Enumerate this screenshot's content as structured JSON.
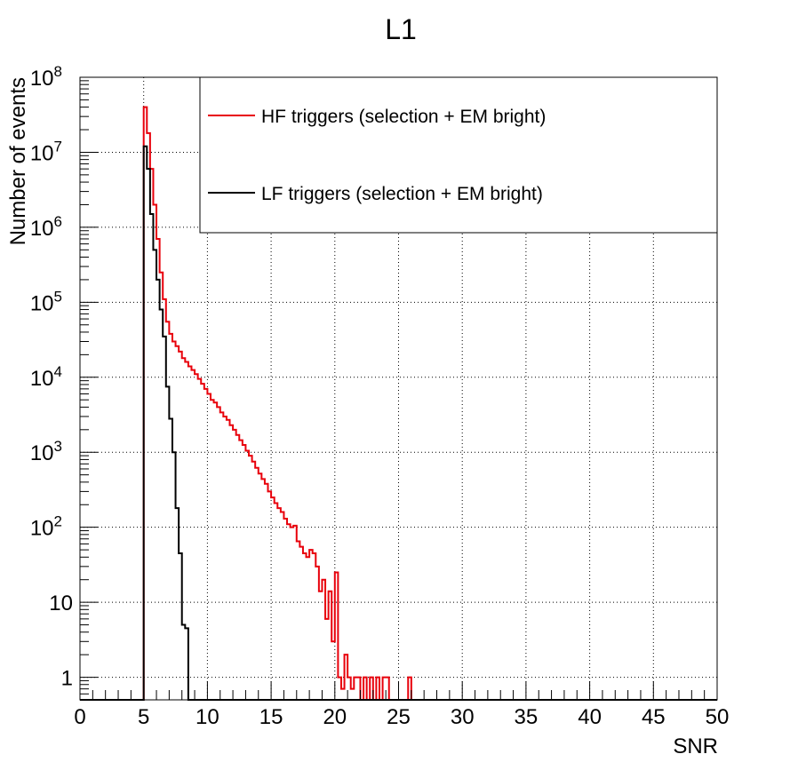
{
  "chart_data": {
    "type": "line",
    "title": "L1",
    "xlabel": "SNR",
    "ylabel": "Number of events",
    "xlim": [
      0,
      50
    ],
    "ylim": [
      0.5,
      100000000
    ],
    "yscale": "log",
    "grid": true,
    "legend_position": "top-right",
    "x_ticks": [
      "0",
      "5",
      "10",
      "15",
      "20",
      "25",
      "30",
      "35",
      "40",
      "45",
      "50"
    ],
    "y_ticks": [
      {
        "value": 1,
        "base": "1",
        "exp": ""
      },
      {
        "value": 10,
        "base": "10",
        "exp": ""
      },
      {
        "value": 100,
        "base": "10",
        "exp": "2"
      },
      {
        "value": 1000,
        "base": "10",
        "exp": "3"
      },
      {
        "value": 10000,
        "base": "10",
        "exp": "4"
      },
      {
        "value": 100000,
        "base": "10",
        "exp": "5"
      },
      {
        "value": 1000000,
        "base": "10",
        "exp": "6"
      },
      {
        "value": 10000000,
        "base": "10",
        "exp": "7"
      },
      {
        "value": 100000000,
        "base": "10",
        "exp": "8"
      }
    ],
    "bin_width": 0.25,
    "series": [
      {
        "name": "HF triggers (selection + EM bright)",
        "color": "#e8000b",
        "points": [
          [
            5.0,
            40000000
          ],
          [
            5.25,
            18000000
          ],
          [
            5.5,
            6000000
          ],
          [
            5.75,
            2000000
          ],
          [
            6.0,
            700000
          ],
          [
            6.25,
            250000
          ],
          [
            6.5,
            110000
          ],
          [
            6.75,
            55000
          ],
          [
            7.0,
            38000
          ],
          [
            7.25,
            30000
          ],
          [
            7.5,
            26000
          ],
          [
            7.75,
            22000
          ],
          [
            8.0,
            18000
          ],
          [
            8.25,
            16000
          ],
          [
            8.5,
            14000
          ],
          [
            8.75,
            12500
          ],
          [
            9.0,
            11000
          ],
          [
            9.25,
            9500
          ],
          [
            9.5,
            8200
          ],
          [
            9.75,
            7000
          ],
          [
            10.0,
            6000
          ],
          [
            10.25,
            5000
          ],
          [
            10.5,
            4600
          ],
          [
            10.75,
            4000
          ],
          [
            11.0,
            3400
          ],
          [
            11.25,
            3000
          ],
          [
            11.5,
            2700
          ],
          [
            11.75,
            2300
          ],
          [
            12.0,
            2000
          ],
          [
            12.25,
            1700
          ],
          [
            12.5,
            1450
          ],
          [
            12.75,
            1250
          ],
          [
            13.0,
            1050
          ],
          [
            13.25,
            900
          ],
          [
            13.5,
            750
          ],
          [
            13.75,
            620
          ],
          [
            14.0,
            520
          ],
          [
            14.25,
            440
          ],
          [
            14.5,
            380
          ],
          [
            14.75,
            300
          ],
          [
            15.0,
            250
          ],
          [
            15.25,
            210
          ],
          [
            15.5,
            180
          ],
          [
            15.75,
            160
          ],
          [
            16.0,
            130
          ],
          [
            16.25,
            110
          ],
          [
            16.5,
            100
          ],
          [
            16.75,
            105
          ],
          [
            17.0,
            65
          ],
          [
            17.25,
            55
          ],
          [
            17.5,
            45
          ],
          [
            17.75,
            40
          ],
          [
            18.0,
            50
          ],
          [
            18.25,
            45
          ],
          [
            18.5,
            30
          ],
          [
            18.75,
            14
          ],
          [
            19.0,
            20
          ],
          [
            19.25,
            6
          ],
          [
            19.5,
            14
          ],
          [
            19.75,
            3
          ],
          [
            20.0,
            25
          ],
          [
            20.25,
            1
          ],
          [
            20.5,
            0.7
          ],
          [
            20.75,
            2
          ],
          [
            21.0,
            1
          ],
          [
            21.25,
            0.7
          ],
          [
            21.5,
            1
          ],
          [
            21.75,
            1
          ],
          [
            22.0,
            0
          ],
          [
            22.25,
            1
          ],
          [
            22.5,
            0
          ],
          [
            22.75,
            1
          ],
          [
            23.0,
            0
          ],
          [
            23.25,
            1
          ],
          [
            23.5,
            0
          ],
          [
            23.75,
            1
          ],
          [
            24.0,
            1
          ],
          [
            24.25,
            0
          ],
          [
            25.75,
            1
          ],
          [
            26.0,
            0
          ]
        ]
      },
      {
        "name": "LF triggers (selection + EM bright)",
        "color": "#000000",
        "points": [
          [
            5.0,
            12000000
          ],
          [
            5.25,
            6000000
          ],
          [
            5.5,
            1500000
          ],
          [
            5.75,
            500000
          ],
          [
            6.0,
            200000
          ],
          [
            6.25,
            80000
          ],
          [
            6.5,
            35000
          ],
          [
            6.75,
            7500
          ],
          [
            7.0,
            2800
          ],
          [
            7.25,
            1000
          ],
          [
            7.5,
            180
          ],
          [
            7.75,
            45
          ],
          [
            8.0,
            5
          ],
          [
            8.25,
            4.5
          ],
          [
            8.5,
            0
          ]
        ]
      }
    ]
  }
}
